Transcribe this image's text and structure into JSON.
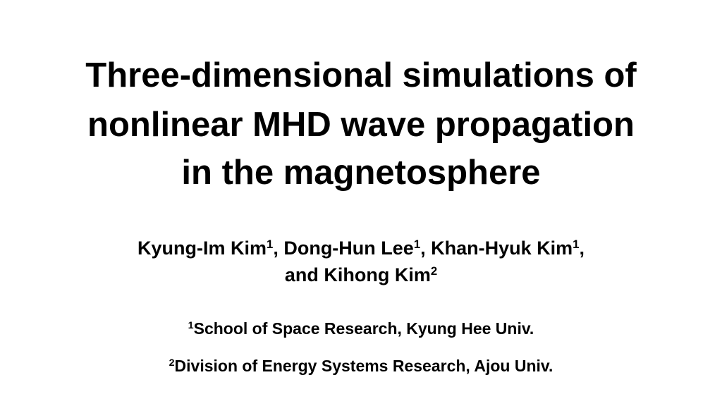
{
  "title": {
    "lines": [
      "Three-dimensional simulations of",
      "nonlinear MHD wave propagation",
      "in the magnetosphere"
    ]
  },
  "authors": {
    "lines": [
      [
        {
          "text": "Kyung-Im Kim",
          "sup": "1"
        },
        {
          "text": ", Dong-Hun Lee",
          "sup": "1"
        },
        {
          "text": ", Khan-Hyuk Kim",
          "sup": "1"
        },
        {
          "text": ","
        }
      ],
      [
        {
          "text": "and Kihong Kim",
          "sup": "2"
        }
      ]
    ]
  },
  "affiliations": [
    {
      "sup": "1",
      "text": "School of Space Research, Kyung Hee Univ."
    },
    {
      "sup": "2",
      "text": "Division of Energy Systems Research, Ajou Univ."
    }
  ]
}
